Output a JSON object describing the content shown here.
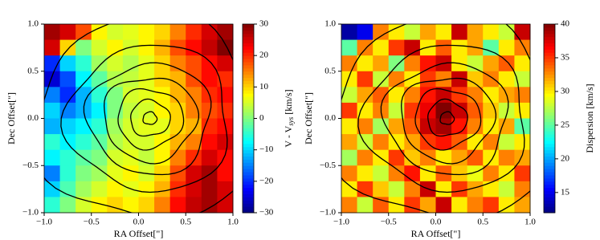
{
  "chart_data": [
    {
      "type": "heatmap",
      "colormap": "jet",
      "xlabel": "RA Offset[\"]",
      "ylabel": "Dec Offset[\"]",
      "xlim": [
        -1,
        1
      ],
      "ylim": [
        -1,
        1
      ],
      "xticks": [
        {
          "value": -1,
          "label": "−1.0"
        },
        {
          "value": -0.5,
          "label": "−0.5"
        },
        {
          "value": 0,
          "label": "0.0"
        },
        {
          "value": 0.5,
          "label": "0.5"
        },
        {
          "value": 1,
          "label": "1.0"
        }
      ],
      "yticks": [
        {
          "value": -1,
          "label": "−1.0"
        },
        {
          "value": -0.5,
          "label": "−0.5"
        },
        {
          "value": 0,
          "label": "0.0"
        },
        {
          "value": 0.5,
          "label": "0.5"
        },
        {
          "value": 1,
          "label": "1.0"
        }
      ],
      "colorbar": {
        "label": [
          "V - V",
          "sys",
          " [km/s]"
        ],
        "lim": [
          -30,
          30
        ],
        "ticks": [
          {
            "value": -30,
            "label": "−30"
          },
          {
            "value": -20,
            "label": "−20"
          },
          {
            "value": -10,
            "label": "−10"
          },
          0,
          10,
          20,
          30
        ]
      },
      "values": [
        [
          28,
          25,
          18,
          8,
          5,
          6,
          8,
          10,
          15,
          20,
          25,
          28
        ],
        [
          25,
          10,
          0,
          5,
          8,
          5,
          8,
          12,
          18,
          22,
          26,
          30
        ],
        [
          -20,
          -10,
          -5,
          2,
          5,
          3,
          6,
          10,
          15,
          18,
          22,
          25
        ],
        [
          -25,
          -18,
          -8,
          -2,
          3,
          4,
          6,
          10,
          12,
          18,
          22,
          20
        ],
        [
          -15,
          -20,
          -12,
          -5,
          0,
          5,
          6,
          8,
          12,
          15,
          20,
          22
        ],
        [
          -10,
          -15,
          -12,
          -8,
          0,
          4,
          5,
          8,
          10,
          15,
          18,
          20
        ],
        [
          -12,
          -10,
          -8,
          -5,
          2,
          5,
          6,
          6,
          10,
          12,
          20,
          22
        ],
        [
          -5,
          -8,
          -5,
          -2,
          3,
          5,
          5,
          8,
          12,
          15,
          22,
          25
        ],
        [
          -8,
          -5,
          -2,
          0,
          5,
          6,
          4,
          8,
          15,
          20,
          25,
          22
        ],
        [
          -15,
          -5,
          0,
          2,
          6,
          8,
          5,
          10,
          18,
          25,
          28,
          22
        ],
        [
          -10,
          -3,
          2,
          5,
          8,
          6,
          8,
          12,
          20,
          25,
          28,
          25
        ],
        [
          -5,
          0,
          5,
          8,
          10,
          8,
          10,
          15,
          22,
          26,
          28,
          25
        ]
      ]
    },
    {
      "type": "heatmap",
      "colormap": "jet",
      "xlabel": "RA Offset[\"]",
      "ylabel": "Dec Offset[\"]",
      "xlim": [
        -1,
        1
      ],
      "ylim": [
        -1,
        1
      ],
      "xticks": [
        {
          "value": -1,
          "label": "−1.0"
        },
        {
          "value": -0.5,
          "label": "−0.5"
        },
        {
          "value": 0,
          "label": "0.0"
        },
        {
          "value": 0.5,
          "label": "0.5"
        },
        {
          "value": 1,
          "label": "1.0"
        }
      ],
      "yticks": [
        {
          "value": -1,
          "label": "−1.0"
        },
        {
          "value": -0.5,
          "label": "−0.5"
        },
        {
          "value": 0,
          "label": "0.0"
        },
        {
          "value": 0.5,
          "label": "0.5"
        },
        {
          "value": 1,
          "label": "1.0"
        }
      ],
      "colorbar": {
        "label": [
          "Dispersion [km/s]"
        ],
        "lim": [
          12,
          40
        ],
        "ticks": [
          15,
          20,
          25,
          30,
          35,
          40
        ]
      },
      "values": [
        [
          13,
          15,
          33,
          30,
          28,
          32,
          30,
          38,
          32,
          30,
          28,
          38
        ],
        [
          25,
          33,
          30,
          35,
          38,
          30,
          34,
          30,
          32,
          25,
          30,
          33
        ],
        [
          33,
          30,
          32,
          26,
          33,
          36,
          38,
          30,
          28,
          32,
          34,
          30
        ],
        [
          30,
          35,
          28,
          33,
          30,
          35,
          33,
          38,
          31,
          33,
          30,
          28
        ],
        [
          28,
          32,
          34,
          30,
          33,
          36,
          38,
          35,
          33,
          30,
          32,
          33
        ],
        [
          35,
          30,
          33,
          28,
          35,
          37,
          40,
          38,
          34,
          31,
          28,
          30
        ],
        [
          30,
          33,
          27,
          32,
          34,
          38,
          39,
          36,
          33,
          30,
          32,
          25
        ],
        [
          32,
          28,
          33,
          30,
          32,
          35,
          36,
          34,
          30,
          33,
          28,
          30
        ],
        [
          27,
          33,
          30,
          35,
          31,
          33,
          30,
          32,
          34,
          30,
          33,
          32
        ],
        [
          33,
          30,
          28,
          33,
          36,
          30,
          34,
          31,
          29,
          33,
          30,
          35
        ],
        [
          30,
          35,
          31,
          28,
          33,
          38,
          30,
          35,
          32,
          30,
          28,
          33
        ],
        [
          33,
          28,
          34,
          30,
          35,
          32,
          38,
          30,
          33,
          35,
          30,
          32
        ]
      ]
    }
  ]
}
